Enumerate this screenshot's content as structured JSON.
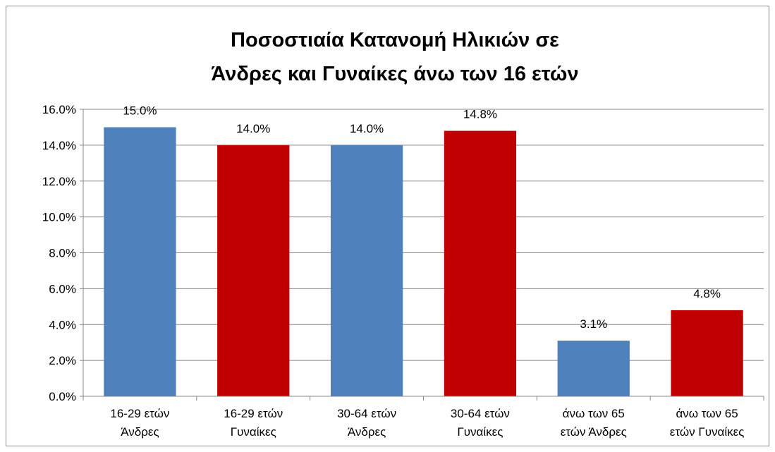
{
  "chart_data": {
    "type": "bar",
    "title": "Ποσοστιαία Κατανομή Ηλικιών σε\nΆνδρες και Γυναίκες άνω των 16 ετών",
    "categories": [
      "16-29 ετών\nΆνδρες",
      "16-29 ετών\nΓυναίκες",
      "30-64 ετών\nΆνδρες",
      "30-64 ετών\nΓυναίκες",
      "άνω των 65\nετών  Άνδρες",
      "άνω των 65\nετών Γυναίκες"
    ],
    "values": [
      15.0,
      14.0,
      14.0,
      14.8,
      3.1,
      4.8
    ],
    "value_labels": [
      "15.0%",
      "14.0%",
      "14.0%",
      "14.8%",
      "3.1%",
      "4.8%"
    ],
    "colors": [
      "#4f81bd",
      "#c00000",
      "#4f81bd",
      "#c00000",
      "#4f81bd",
      "#c00000"
    ],
    "ylim": [
      0,
      16
    ],
    "yticks": [
      {
        "value": 0,
        "label": "0.0%"
      },
      {
        "value": 2,
        "label": "2.0%"
      },
      {
        "value": 4,
        "label": "4.0%"
      },
      {
        "value": 6,
        "label": "6.0%"
      },
      {
        "value": 8,
        "label": "8.0%"
      },
      {
        "value": 10,
        "label": "10.0%"
      },
      {
        "value": 12,
        "label": "12.0%"
      },
      {
        "value": 14,
        "label": "14.0%"
      },
      {
        "value": 16,
        "label": "16.0%"
      }
    ],
    "grid": true
  }
}
